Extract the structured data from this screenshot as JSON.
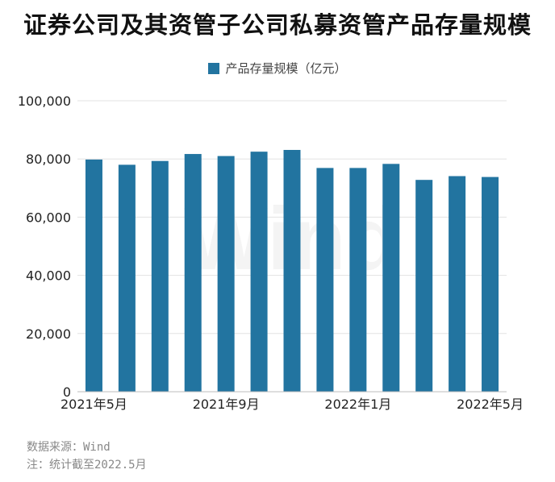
{
  "colors": {
    "bar": "#2274a0",
    "grid": "#e3e3e3",
    "axis": "#bdbdbd"
  },
  "watermark": "Wind",
  "footer": {
    "source": "数据来源：Wind",
    "note": "注：统计截至2022.5月"
  },
  "chart_data": {
    "type": "bar",
    "title": "证券公司及其资管子公司私募资管产品存量规模",
    "xlabel": "",
    "ylabel": "",
    "ylim": [
      0,
      100000
    ],
    "yticks": [
      0,
      20000,
      40000,
      60000,
      80000,
      100000
    ],
    "ytick_labels": [
      "0",
      "20,000",
      "40,000",
      "60,000",
      "80,000",
      "100,000"
    ],
    "grid": true,
    "legend": "top",
    "categories": [
      "2021年5月",
      "2021年6月",
      "2021年7月",
      "2021年8月",
      "2021年9月",
      "2021年10月",
      "2021年11月",
      "2021年12月",
      "2022年1月",
      "2022年2月",
      "2022年3月",
      "2022年4月",
      "2022年5月"
    ],
    "xtick_labels": [
      "2021年5月",
      "2021年9月",
      "2022年1月",
      "2022年5月"
    ],
    "xtick_indices": [
      0,
      4,
      8,
      12
    ],
    "series": [
      {
        "name": "产品存量规模（亿元）",
        "values": [
          79800,
          78000,
          79300,
          81700,
          81000,
          82500,
          83100,
          76900,
          76900,
          78300,
          72800,
          74100,
          73800
        ]
      }
    ]
  }
}
